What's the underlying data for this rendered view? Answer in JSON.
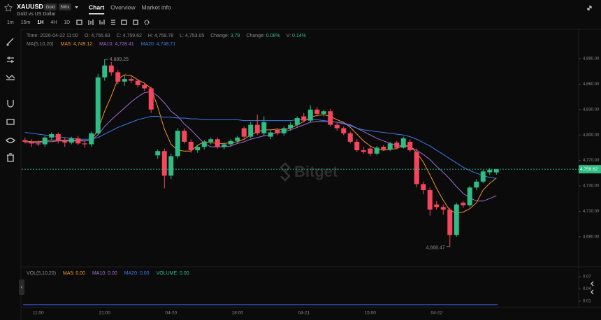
{
  "header": {
    "symbol": "XAUUSD",
    "badge": "Gold",
    "leverage": "500x",
    "description": "Gold vs US Dollar",
    "tabs": [
      "Chart",
      "Overview",
      "Market info"
    ],
    "intervals": [
      "1m",
      "15m",
      "1H",
      "4H",
      "1D"
    ]
  },
  "info_bar": [
    {
      "label": "Time:",
      "value": "2026-04-22 11:00",
      "color": "#8a8a8a"
    },
    {
      "label": "O:",
      "value": "4,755.83",
      "color": "#8a8a8a"
    },
    {
      "label": "C:",
      "value": "4,759.62",
      "color": "#8a8a8a"
    },
    {
      "label": "H:",
      "value": "4,759.78",
      "color": "#8a8a8a"
    },
    {
      "label": "L:",
      "value": "4,753.05",
      "color": "#8a8a8a"
    },
    {
      "label": "Change:",
      "value": "3.79",
      "color": "#2ebd85"
    },
    {
      "label": "Change:",
      "value": "0.08%",
      "color": "#2ebd85"
    },
    {
      "label": "V:",
      "value": "0.14%",
      "color": "#2ebd85"
    }
  ],
  "chart_data": {
    "type": "candlestick",
    "legend_title": "MA(5,10,20)",
    "watermark": "Bitget",
    "up_color": "#2ebd85",
    "down_color": "#f6465d",
    "grid": false,
    "categories": [
      null,
      null,
      "11:00",
      null,
      null,
      null,
      null,
      null,
      null,
      null,
      null,
      null,
      "21:00",
      null,
      null,
      null,
      null,
      null,
      null,
      null,
      null,
      null,
      "04-20",
      null,
      null,
      null,
      null,
      null,
      null,
      null,
      null,
      null,
      "18:00",
      null,
      null,
      null,
      null,
      null,
      null,
      null,
      null,
      null,
      "04-21",
      null,
      null,
      null,
      null,
      null,
      null,
      null,
      null,
      null,
      "15:00",
      null,
      null,
      null,
      null,
      null,
      null,
      null,
      null,
      null,
      "04-22",
      null,
      null,
      null,
      null,
      null,
      null,
      null,
      null,
      null
    ],
    "open": [
      4794,
      4792,
      4790,
      4789,
      4797,
      4801,
      4793,
      4791,
      4796,
      4790,
      4789,
      4802,
      4868,
      4882,
      4874,
      4863,
      4866,
      4864,
      4859,
      4855,
      4776,
      4781,
      4752,
      4775,
      4805,
      4792,
      4782,
      4786,
      4792,
      4795,
      4786,
      4789,
      4793,
      4808,
      4798,
      4812,
      4802,
      4798,
      4806,
      4802,
      4808,
      4812,
      4822,
      4817,
      4830,
      4825,
      4828,
      4812,
      4808,
      4802,
      4792,
      4782,
      4784,
      4778,
      4786,
      4783,
      4791,
      4785,
      4792,
      4780,
      4742,
      4735,
      4718,
      4715,
      4712,
      4682,
      4720,
      4717,
      4738,
      4745,
      4756,
      4755.83
    ],
    "high": [
      4797,
      4795,
      4794,
      4799,
      4803,
      4803,
      4797,
      4798,
      4799,
      4794,
      4804,
      4872,
      4889.25,
      4886,
      4877,
      4870,
      4869,
      4866,
      4862,
      4857,
      4783,
      4784,
      4778,
      4808,
      4808,
      4795,
      4788,
      4794,
      4797,
      4797,
      4791,
      4795,
      4799,
      4810,
      4815,
      4824,
      4822,
      4806,
      4808,
      4810,
      4815,
      4822,
      4826,
      4835,
      4833,
      4830,
      4831,
      4815,
      4810,
      4804,
      4795,
      4786,
      4787,
      4787,
      4788,
      4792,
      4793,
      4798,
      4795,
      4784,
      4745,
      4738,
      4722,
      4718,
      4714,
      4720,
      4722,
      4740,
      4748,
      4759,
      4761,
      4759.78
    ],
    "low": [
      4790,
      4786,
      4787,
      4786,
      4794,
      4790,
      4786,
      4789,
      4788,
      4785,
      4786,
      4800,
      4864,
      4870,
      4860,
      4858,
      4861,
      4856,
      4852,
      4826,
      4772,
      4737,
      4748,
      4772,
      4790,
      4779,
      4779,
      4783,
      4789,
      4784,
      4783,
      4786,
      4790,
      4796,
      4796,
      4800,
      4799,
      4795,
      4800,
      4799,
      4805,
      4810,
      4815,
      4815,
      4822,
      4822,
      4810,
      4805,
      4800,
      4790,
      4780,
      4778,
      4775,
      4776,
      4781,
      4781,
      4783,
      4784,
      4780,
      4738,
      4730,
      4705,
      4712,
      4706,
      4668.47,
      4680,
      4714,
      4715,
      4735,
      4743,
      4753,
      4753.05
    ],
    "close": [
      4792,
      4790,
      4789,
      4797,
      4801,
      4793,
      4791,
      4796,
      4790,
      4789,
      4802,
      4868,
      4882,
      4874,
      4863,
      4866,
      4864,
      4859,
      4855,
      4830,
      4781,
      4752,
      4775,
      4805,
      4792,
      4782,
      4786,
      4792,
      4795,
      4786,
      4789,
      4793,
      4797,
      4798,
      4812,
      4802,
      4815,
      4803,
      4802,
      4808,
      4812,
      4820,
      4817,
      4830,
      4825,
      4828,
      4812,
      4808,
      4802,
      4792,
      4782,
      4780,
      4778,
      4785,
      4783,
      4790,
      4785,
      4796,
      4782,
      4742,
      4735,
      4712,
      4715,
      4712,
      4682,
      4718,
      4717,
      4738,
      4745,
      4757,
      4759,
      4759.62
    ],
    "series": [
      {
        "name": "MA5:",
        "value_label": "4,749.12",
        "color": "#f0932b",
        "values": [
          4793,
          4792,
          4792,
          4793,
          4794,
          4794,
          4794,
          4794,
          4794,
          4793,
          4794,
          4806,
          4828,
          4846,
          4866,
          4871,
          4870,
          4865,
          4861,
          4855,
          4833,
          4807,
          4789,
          4782,
          4781,
          4781,
          4788,
          4792,
          4791,
          4790,
          4790,
          4791,
          4792,
          4795,
          4800,
          4804,
          4806,
          4806,
          4807,
          4806,
          4808,
          4812,
          4816,
          4821,
          4823,
          4824,
          4822,
          4818,
          4815,
          4809,
          4801,
          4793,
          4787,
          4783,
          4782,
          4783,
          4784,
          4788,
          4787,
          4779,
          4768,
          4753,
          4737,
          4723,
          4711,
          4708,
          4709,
          4713,
          4720,
          4735,
          4743,
          4749.12
        ]
      },
      {
        "name": "MA10:",
        "value_label": "4,728.41",
        "color": "#a66bd6",
        "values": [
          4791,
          4791,
          4791,
          4792,
          4792,
          4793,
          4793,
          4793,
          4793,
          4793,
          4794,
          4800,
          4810,
          4818,
          4825,
          4832,
          4839,
          4845,
          4850,
          4851,
          4846,
          4838,
          4828,
          4822,
          4813,
          4806,
          4798,
          4790,
          4786,
          4786,
          4786,
          4787,
          4790,
          4792,
          4795,
          4797,
          4799,
          4800,
          4803,
          4804,
          4806,
          4809,
          4812,
          4815,
          4816,
          4816,
          4816,
          4815,
          4814,
          4812,
          4808,
          4804,
          4800,
          4796,
          4793,
          4790,
          4788,
          4787,
          4786,
          4782,
          4777,
          4771,
          4763,
          4756,
          4748,
          4739,
          4731,
          4726,
          4722,
          4722,
          4725,
          4728.41
        ]
      },
      {
        "name": "MA20:",
        "value_label": "4,748.71",
        "color": "#3d7be8",
        "values": [
          4803,
          4802,
          4801,
          4800,
          4799,
          4798,
          4797,
          4796,
          4795,
          4795,
          4795,
          4797,
          4801,
          4805,
          4809,
          4812,
          4815,
          4818,
          4820,
          4822,
          4822,
          4821,
          4821,
          4820,
          4820,
          4819,
          4819,
          4818,
          4818,
          4818,
          4818,
          4818,
          4818,
          4817,
          4817,
          4817,
          4817,
          4817,
          4817,
          4817,
          4817,
          4818,
          4818,
          4818,
          4818,
          4817,
          4816,
          4815,
          4813,
          4811,
          4808,
          4806,
          4805,
          4804,
          4803,
          4802,
          4801,
          4800,
          4798,
          4795,
          4791,
          4787,
          4782,
          4777,
          4772,
          4767,
          4762,
          4758,
          4755,
          4752,
          4750,
          4748.71
        ]
      }
    ],
    "ylim": [
      4646,
      4923
    ],
    "yticks": [
      {
        "value": 4680,
        "label": "4,680.00"
      },
      {
        "value": 4710,
        "label": "4,710.00"
      },
      {
        "value": 4740,
        "label": "4,740.00"
      },
      {
        "value": 4770,
        "label": "4,770.00"
      },
      {
        "value": 4800,
        "label": "4,800.00"
      },
      {
        "value": 4830,
        "label": "4,830.00"
      },
      {
        "value": 4860,
        "label": "4,860.00"
      },
      {
        "value": 4890,
        "label": "4,890.00"
      }
    ],
    "current_price": {
      "value": 4759.62,
      "label": "4,759.62"
    },
    "annotations": [
      {
        "value": 4889.25,
        "label": "4,889.25",
        "side": "high"
      },
      {
        "value": 4668.47,
        "label": "4,668.47",
        "side": "low"
      }
    ]
  },
  "volume_panel": {
    "legend": [
      {
        "text": "VOL(5,10,20)",
        "color": "#8a8a8a"
      },
      {
        "text": "MA5: 0.00",
        "color": "#f0932b"
      },
      {
        "text": "MA10: 0.00",
        "color": "#a66bd6"
      },
      {
        "text": "MA20: 0.00",
        "color": "#3d7be8"
      },
      {
        "text": "VOLUME: 0.00",
        "color": "#2ebd85"
      }
    ],
    "ylim": [
      -0.002,
      0.089
    ],
    "yticks": [
      0.01,
      0.04,
      0.07
    ]
  }
}
